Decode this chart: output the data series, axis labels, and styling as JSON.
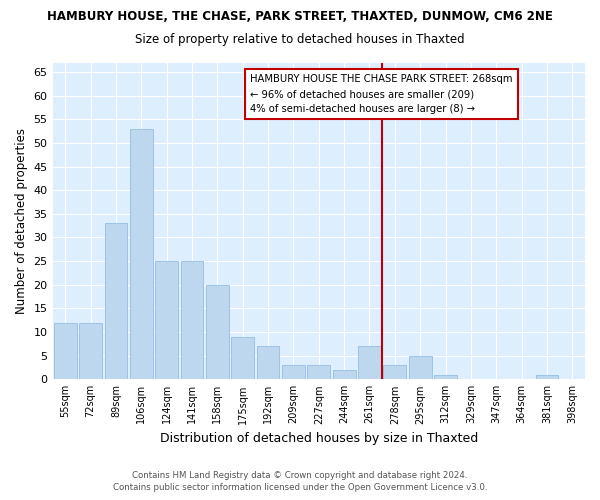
{
  "title": "HAMBURY HOUSE, THE CHASE, PARK STREET, THAXTED, DUNMOW, CM6 2NE",
  "subtitle": "Size of property relative to detached houses in Thaxted",
  "xlabel": "Distribution of detached houses by size in Thaxted",
  "ylabel": "Number of detached properties",
  "footer_line1": "Contains HM Land Registry data © Crown copyright and database right 2024.",
  "footer_line2": "Contains public sector information licensed under the Open Government Licence v3.0.",
  "bar_labels": [
    "55sqm",
    "72sqm",
    "89sqm",
    "106sqm",
    "124sqm",
    "141sqm",
    "158sqm",
    "175sqm",
    "192sqm",
    "209sqm",
    "227sqm",
    "244sqm",
    "261sqm",
    "278sqm",
    "295sqm",
    "312sqm",
    "329sqm",
    "347sqm",
    "364sqm",
    "381sqm",
    "398sqm"
  ],
  "bar_values": [
    12,
    12,
    33,
    53,
    25,
    25,
    20,
    9,
    7,
    3,
    3,
    2,
    7,
    3,
    5,
    1,
    0,
    0,
    0,
    1,
    0
  ],
  "bar_color": "#BDD7EE",
  "bar_edge_color": "#9DC3E6",
  "vline_color": "#C00000",
  "annotation_title": "HAMBURY HOUSE THE CHASE PARK STREET: 268sqm",
  "annotation_line1": "← 96% of detached houses are smaller (209)",
  "annotation_line2": "4% of semi-detached houses are larger (8) →",
  "annotation_box_color": "#ffffff",
  "annotation_box_edge": "#C00000",
  "ylim": [
    0,
    67
  ],
  "yticks": [
    0,
    5,
    10,
    15,
    20,
    25,
    30,
    35,
    40,
    45,
    50,
    55,
    60,
    65
  ],
  "plot_bg_color": "#DDEEFF",
  "fig_bg_color": "#ffffff",
  "figsize": [
    6.0,
    5.0
  ],
  "dpi": 100
}
